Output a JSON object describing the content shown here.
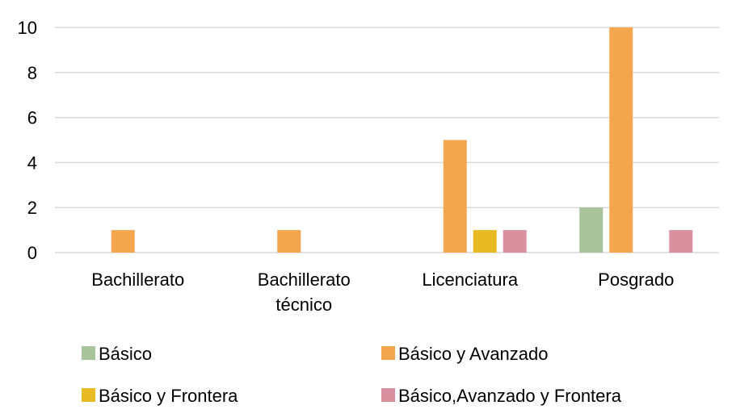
{
  "chart_data": {
    "type": "bar",
    "title": "",
    "xlabel": "",
    "ylabel": "",
    "ylim": [
      0,
      10
    ],
    "yticks": [
      0,
      2,
      4,
      6,
      8,
      10
    ],
    "grid": true,
    "legend_position": "bottom",
    "categories": [
      [
        "Bachillerato"
      ],
      [
        "Bachillerato",
        "técnico"
      ],
      [
        "Licenciatura"
      ],
      [
        "Posgrado"
      ]
    ],
    "series": [
      {
        "name": "Básico",
        "color": "#a9c49a",
        "values": [
          0,
          0,
          0,
          2
        ]
      },
      {
        "name": "Básico y Avanzado",
        "color": "#f4a64f",
        "values": [
          1,
          1,
          5,
          10
        ]
      },
      {
        "name": "Básico y Frontera",
        "color": "#e8bb24",
        "values": [
          0,
          0,
          1,
          0
        ]
      },
      {
        "name": "Básico,Avanzado y Frontera",
        "color": "#d9909f",
        "values": [
          0,
          0,
          1,
          1
        ]
      }
    ]
  }
}
